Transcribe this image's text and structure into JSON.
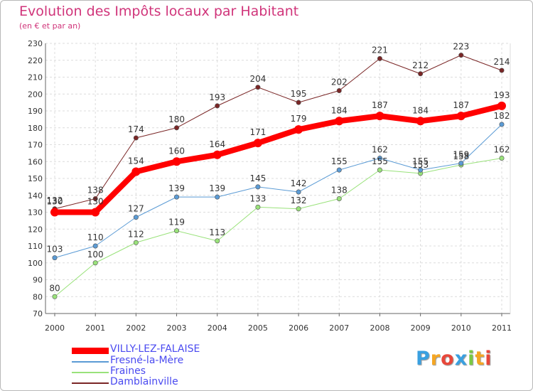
{
  "chart_data": {
    "type": "line",
    "title": "Evolution des Impôts locaux par Habitant",
    "subtitle": "(en € et par an)",
    "x": [
      "2000",
      "2001",
      "2002",
      "2003",
      "2004",
      "2005",
      "2006",
      "2007",
      "2008",
      "2009",
      "2010",
      "2011"
    ],
    "ylim": [
      70,
      230
    ],
    "yticks": [
      70,
      80,
      90,
      100,
      110,
      120,
      130,
      140,
      150,
      160,
      170,
      180,
      190,
      200,
      210,
      220,
      230
    ],
    "grid": true,
    "legend_position": "bottom-left",
    "series": [
      {
        "name": "VILLY-LEZ-FALAISE",
        "color": "#ff0000",
        "values": [
          130,
          130,
          154,
          160,
          164,
          171,
          179,
          184,
          187,
          184,
          187,
          193
        ]
      },
      {
        "name": "Fresné-la-Mère",
        "color": "#5b9bd5",
        "values": [
          103,
          110,
          127,
          139,
          139,
          145,
          142,
          155,
          162,
          155,
          159,
          182
        ]
      },
      {
        "name": "Fraines",
        "color": "#99e27a",
        "values": [
          80,
          100,
          112,
          119,
          113,
          133,
          132,
          138,
          155,
          153,
          158,
          162
        ]
      },
      {
        "name": "Damblainville",
        "color": "#7a2626",
        "values": [
          132,
          138,
          174,
          180,
          193,
          204,
          195,
          202,
          221,
          212,
          223,
          214
        ]
      }
    ]
  },
  "logo": {
    "letters": [
      {
        "t": "P",
        "color": "#3aa0e0"
      },
      {
        "t": "r",
        "color": "#f5a623"
      },
      {
        "t": "o",
        "color": "#e8473a"
      },
      {
        "t": "x",
        "color": "#3aa0e0"
      },
      {
        "t": "i",
        "color": "#7ac943"
      },
      {
        "t": "t",
        "color": "#f5a623"
      },
      {
        "t": "i",
        "color": "#e8473a"
      }
    ]
  }
}
